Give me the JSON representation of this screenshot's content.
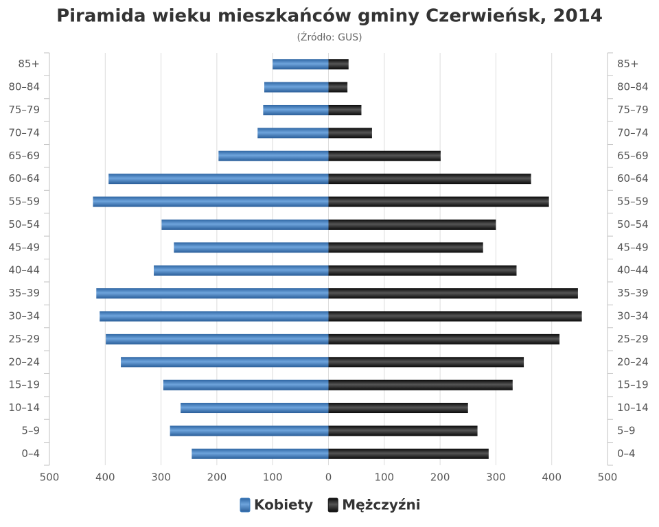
{
  "chart_data": {
    "type": "pyramid",
    "title": "Piramida wieku mieszkańców gminy Czerwieńsk, 2014",
    "subtitle": "(Źródło: GUS)",
    "categories": [
      "0–4",
      "5–9",
      "10–14",
      "15–19",
      "20–24",
      "25–29",
      "30–34",
      "35–39",
      "40–44",
      "45–49",
      "50–54",
      "55–59",
      "60–64",
      "65–69",
      "70–74",
      "75–79",
      "80–84",
      "85+"
    ],
    "series": [
      {
        "name": "Kobiety",
        "color": "#3f7fc0",
        "side": "left",
        "values": [
          245,
          284,
          265,
          296,
          372,
          399,
          410,
          416,
          313,
          277,
          299,
          422,
          394,
          197,
          127,
          117,
          115,
          100
        ]
      },
      {
        "name": "Mężczyźni",
        "color": "#1e1e1e",
        "side": "right",
        "values": [
          287,
          267,
          250,
          330,
          350,
          414,
          454,
          447,
          337,
          277,
          300,
          395,
          363,
          201,
          78,
          59,
          34,
          36
        ]
      }
    ],
    "xlim": [
      -500,
      500
    ],
    "xticks": [
      {
        "value": -500,
        "label": "500"
      },
      {
        "value": -400,
        "label": "400"
      },
      {
        "value": -300,
        "label": "300"
      },
      {
        "value": -200,
        "label": "200"
      },
      {
        "value": -100,
        "label": "100"
      },
      0,
      100,
      200,
      300,
      400,
      500
    ],
    "grid": true,
    "legend": "bottom"
  }
}
